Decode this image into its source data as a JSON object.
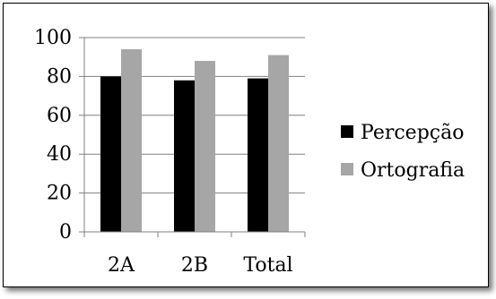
{
  "chart_data": {
    "type": "bar",
    "title": "",
    "xlabel": "",
    "ylabel": "",
    "categories": [
      "2A",
      "2B",
      "Total"
    ],
    "series": [
      {
        "name": "Percepção",
        "values": [
          80,
          78,
          79
        ],
        "color": "#000000"
      },
      {
        "name": "Ortografia",
        "values": [
          94,
          88,
          91
        ],
        "color": "#a6a6a6"
      }
    ],
    "ylim": [
      0,
      100
    ],
    "yticks": [
      0,
      20,
      40,
      60,
      80,
      100
    ],
    "grid": true,
    "legend_position": "right"
  }
}
